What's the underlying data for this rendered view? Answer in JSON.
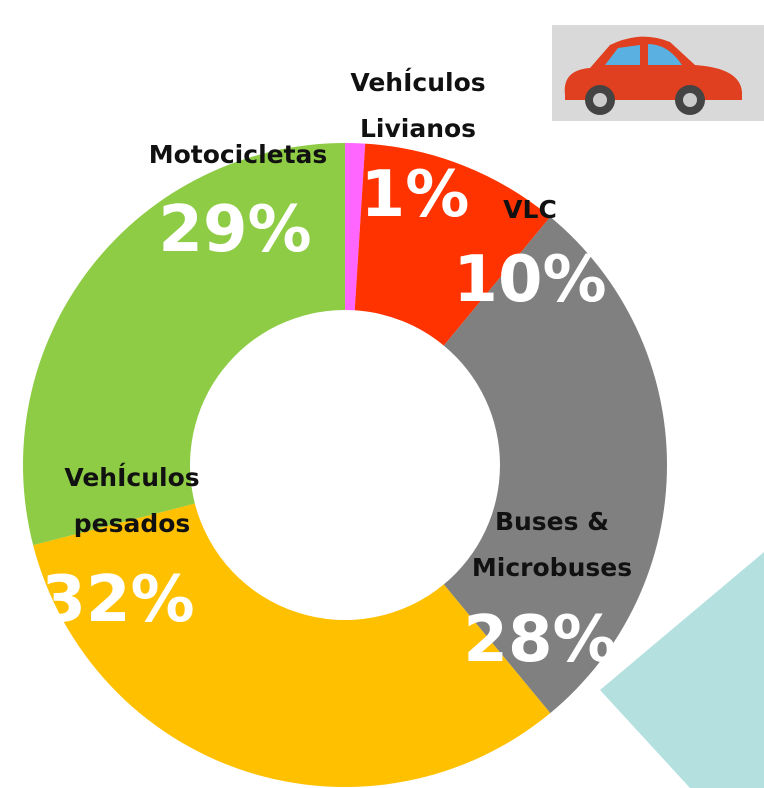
{
  "chart_data": {
    "type": "donut",
    "categories": [
      "VehÍculos\nLivianos",
      "VLC",
      "Buses &\nMicrobuses",
      "VehÍculos\npesados",
      "Motocicletas"
    ],
    "values": [
      1,
      10,
      28,
      32,
      29
    ],
    "value_labels": [
      "1%",
      "10%",
      "28%",
      "32%",
      "29%"
    ],
    "colors": [
      "#ff66ff",
      "#ff3300",
      "#808080",
      "#ffc000",
      "#8dcc44"
    ]
  }
}
